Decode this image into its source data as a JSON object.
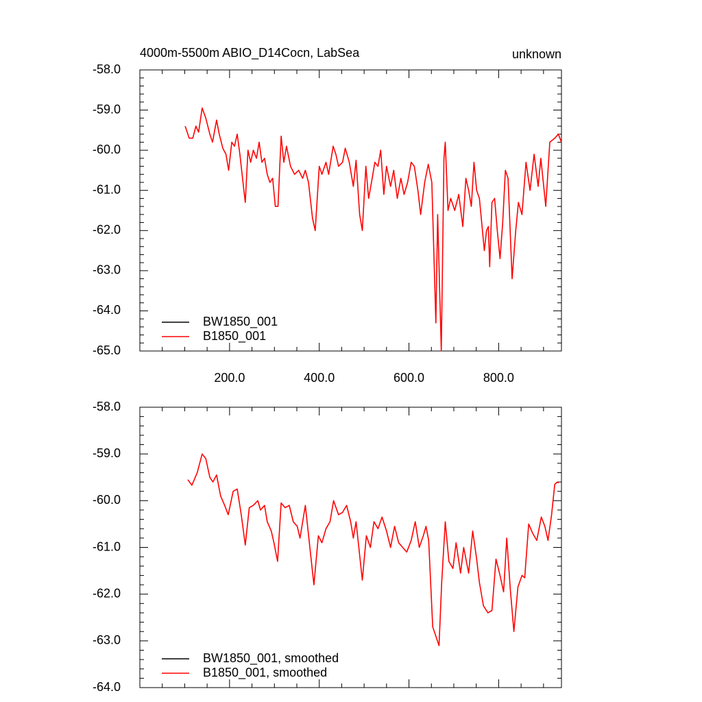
{
  "chart_data": [
    {
      "type": "line",
      "title": "4000m-5500m ABIO_D14Cocn, LabSea",
      "right_title": "unknown",
      "xlim": [
        0,
        940
      ],
      "ylim": [
        -65,
        -58
      ],
      "xticks": [
        {
          "value": 200,
          "label": "200.0"
        },
        {
          "value": 400,
          "label": "400.0"
        },
        {
          "value": 600,
          "label": "600.0"
        },
        {
          "value": 800,
          "label": "800.0"
        }
      ],
      "yticks": [
        {
          "value": -58,
          "label": "-58.0"
        },
        {
          "value": -59,
          "label": "-59.0"
        },
        {
          "value": -60,
          "label": "-60.0"
        },
        {
          "value": -61,
          "label": "-61.0"
        },
        {
          "value": -62,
          "label": "-62.0"
        },
        {
          "value": -63,
          "label": "-63.0"
        },
        {
          "value": -64,
          "label": "-64.0"
        },
        {
          "value": -65,
          "label": "-65.0"
        }
      ],
      "legend": "lower left",
      "x": [
        101,
        110,
        118,
        125,
        131,
        139,
        147,
        156,
        162,
        171,
        177,
        185,
        192,
        198,
        205,
        211,
        217,
        223,
        229,
        235,
        241,
        247,
        253,
        260,
        266,
        272,
        278,
        284,
        290,
        296,
        302,
        308,
        315,
        321,
        327,
        336,
        345,
        354,
        363,
        369,
        376,
        385,
        391,
        400,
        406,
        415,
        421,
        431,
        437,
        443,
        452,
        458,
        467,
        476,
        482,
        490,
        496,
        504,
        510,
        518,
        524,
        531,
        537,
        544,
        550,
        559,
        566,
        574,
        582,
        589,
        597,
        605,
        612,
        620,
        626,
        635,
        643,
        651,
        660,
        664,
        672,
        678,
        681,
        687,
        693,
        702,
        711,
        720,
        727,
        733,
        739,
        745,
        751,
        757,
        763,
        768,
        773,
        777,
        780,
        785,
        791,
        797,
        803,
        809,
        815,
        821,
        830,
        838,
        844,
        852,
        861,
        870,
        879,
        888,
        894,
        905,
        914,
        925,
        933,
        940
      ],
      "series": [
        {
          "name": "BW1850_001",
          "color": "#000000"
        },
        {
          "name": "B1850_001",
          "color": "#ff0000",
          "values": [
            -59.4,
            -59.7,
            -59.7,
            -59.4,
            -59.55,
            -58.95,
            -59.2,
            -59.6,
            -59.8,
            -59.25,
            -59.6,
            -59.95,
            -60.1,
            -60.5,
            -59.8,
            -59.9,
            -59.6,
            -60.1,
            -60.7,
            -61.3,
            -60.0,
            -60.3,
            -60.0,
            -60.2,
            -59.8,
            -60.3,
            -60.2,
            -60.6,
            -60.8,
            -60.7,
            -61.4,
            -61.4,
            -59.65,
            -60.3,
            -59.9,
            -60.4,
            -60.6,
            -60.5,
            -60.7,
            -60.5,
            -60.8,
            -61.7,
            -62.0,
            -60.4,
            -60.6,
            -60.3,
            -60.6,
            -59.9,
            -60.1,
            -60.4,
            -60.3,
            -59.95,
            -60.3,
            -60.9,
            -60.25,
            -61.6,
            -62.0,
            -60.4,
            -61.2,
            -60.7,
            -60.3,
            -60.4,
            -60.0,
            -61.1,
            -60.4,
            -60.9,
            -60.5,
            -61.2,
            -60.7,
            -61.1,
            -60.8,
            -60.3,
            -60.4,
            -61.0,
            -61.6,
            -60.8,
            -60.35,
            -60.8,
            -64.3,
            -61.6,
            -65.0,
            -60.2,
            -59.8,
            -61.5,
            -61.2,
            -61.5,
            -61.1,
            -61.9,
            -60.7,
            -61.0,
            -61.4,
            -60.3,
            -61.0,
            -61.2,
            -61.9,
            -62.5,
            -62.0,
            -61.9,
            -62.9,
            -61.3,
            -61.2,
            -62.0,
            -62.7,
            -61.8,
            -60.5,
            -60.7,
            -63.2,
            -62.0,
            -61.3,
            -61.6,
            -60.3,
            -61.0,
            -60.1,
            -60.9,
            -60.2,
            -61.4,
            -59.8,
            -59.7,
            -59.6,
            -59.8
          ]
        }
      ]
    },
    {
      "type": "line",
      "xlim": [
        0,
        940
      ],
      "ylim": [
        -64,
        -58
      ],
      "xticks": [
        200,
        400,
        600,
        800
      ],
      "xtick_labels": false,
      "yticks": [
        {
          "value": -58,
          "label": "-58.0"
        },
        {
          "value": -59,
          "label": "-59.0"
        },
        {
          "value": -60,
          "label": "-60.0"
        },
        {
          "value": -61,
          "label": "-61.0"
        },
        {
          "value": -62,
          "label": "-62.0"
        },
        {
          "value": -63,
          "label": "-63.0"
        },
        {
          "value": -64,
          "label": "-64.0"
        }
      ],
      "legend": "lower left",
      "x": [
        107,
        116,
        128,
        139,
        147,
        156,
        163,
        171,
        180,
        189,
        197,
        208,
        217,
        226,
        235,
        244,
        253,
        263,
        269,
        278,
        284,
        293,
        299,
        307,
        315,
        324,
        333,
        342,
        351,
        357,
        369,
        379,
        388,
        398,
        406,
        415,
        424,
        432,
        443,
        452,
        461,
        470,
        476,
        482,
        496,
        505,
        514,
        522,
        531,
        540,
        550,
        559,
        568,
        577,
        586,
        595,
        605,
        614,
        623,
        632,
        638,
        644,
        653,
        660,
        667,
        673,
        681,
        689,
        698,
        705,
        715,
        722,
        733,
        742,
        751,
        757,
        766,
        776,
        785,
        794,
        803,
        811,
        818,
        826,
        834,
        843,
        852,
        858,
        867,
        876,
        885,
        895,
        903,
        910,
        918,
        925,
        931,
        934
      ],
      "series": [
        {
          "name": "BW1850_001, smoothed",
          "color": "#000000"
        },
        {
          "name": "B1850_001, smoothed",
          "color": "#ff0000",
          "values": [
            -59.55,
            -59.67,
            -59.4,
            -59.0,
            -59.1,
            -59.5,
            -59.6,
            -59.45,
            -59.9,
            -60.1,
            -60.3,
            -59.8,
            -59.75,
            -60.3,
            -60.95,
            -60.15,
            -60.1,
            -60.0,
            -60.2,
            -60.1,
            -60.45,
            -60.65,
            -60.9,
            -61.3,
            -60.05,
            -60.15,
            -60.1,
            -60.45,
            -60.55,
            -60.8,
            -60.1,
            -61.0,
            -61.8,
            -60.75,
            -60.9,
            -60.6,
            -60.45,
            -60.0,
            -60.3,
            -60.25,
            -60.1,
            -60.45,
            -60.8,
            -60.45,
            -61.7,
            -60.75,
            -61.0,
            -60.45,
            -60.6,
            -60.35,
            -60.65,
            -61.0,
            -60.55,
            -60.9,
            -61.0,
            -61.1,
            -60.85,
            -60.45,
            -61.0,
            -60.75,
            -60.55,
            -60.85,
            -62.7,
            -62.9,
            -63.1,
            -61.75,
            -60.45,
            -61.3,
            -61.45,
            -60.9,
            -61.55,
            -61.0,
            -61.55,
            -60.65,
            -61.25,
            -61.75,
            -62.25,
            -62.4,
            -62.35,
            -61.25,
            -61.6,
            -61.95,
            -60.8,
            -61.9,
            -62.8,
            -61.85,
            -61.6,
            -61.65,
            -60.5,
            -60.7,
            -60.85,
            -60.35,
            -60.55,
            -60.85,
            -60.3,
            -59.65,
            -59.6,
            -59.62
          ]
        }
      ]
    }
  ]
}
